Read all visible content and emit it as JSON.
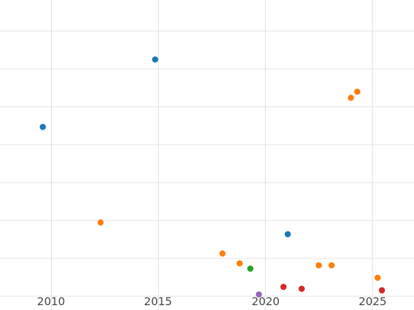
{
  "colors": {
    "background": "#ffffff",
    "gridline": "#e0e0e0",
    "tick_label": "#474747",
    "blue": "#1f77b4",
    "orange": "#ff7f0e",
    "green": "#2ca02c",
    "red": "#d62728",
    "purple": "#9467bd"
  },
  "chart_data": {
    "type": "scatter",
    "title": "",
    "xlabel": "",
    "ylabel": "",
    "x_tick_labels": [
      "2010",
      "2015",
      "2020",
      "2025"
    ],
    "x_ticks": [
      2010,
      2015,
      2020,
      2025
    ],
    "xlim": [
      2007.6,
      2026.95
    ],
    "ylim": [
      -0.36,
      7.82
    ],
    "y_gridlines": [
      0,
      1,
      2,
      3,
      4,
      5,
      6,
      7
    ],
    "grid": true,
    "legend_position": "none",
    "marker_size_px": 9,
    "series": [
      {
        "name": "blue",
        "color": "#1f77b4",
        "points": [
          {
            "x": 2009.6,
            "y": 4.47
          },
          {
            "x": 2014.85,
            "y": 6.25
          },
          {
            "x": 2021.05,
            "y": 1.64
          }
        ]
      },
      {
        "name": "orange",
        "color": "#ff7f0e",
        "points": [
          {
            "x": 2012.3,
            "y": 1.95
          },
          {
            "x": 2018.0,
            "y": 1.13
          },
          {
            "x": 2018.8,
            "y": 0.87
          },
          {
            "x": 2022.5,
            "y": 0.82
          },
          {
            "x": 2023.1,
            "y": 0.82
          },
          {
            "x": 2024.0,
            "y": 5.24
          },
          {
            "x": 2024.3,
            "y": 5.4
          },
          {
            "x": 2025.25,
            "y": 0.49
          }
        ]
      },
      {
        "name": "green",
        "color": "#2ca02c",
        "points": [
          {
            "x": 2019.3,
            "y": 0.73
          }
        ]
      },
      {
        "name": "red",
        "color": "#d62728",
        "points": [
          {
            "x": 2020.85,
            "y": 0.25
          },
          {
            "x": 2021.7,
            "y": 0.2
          },
          {
            "x": 2025.45,
            "y": 0.16
          }
        ]
      },
      {
        "name": "purple",
        "color": "#9467bd",
        "points": [
          {
            "x": 2019.7,
            "y": 0.05
          }
        ]
      }
    ]
  }
}
